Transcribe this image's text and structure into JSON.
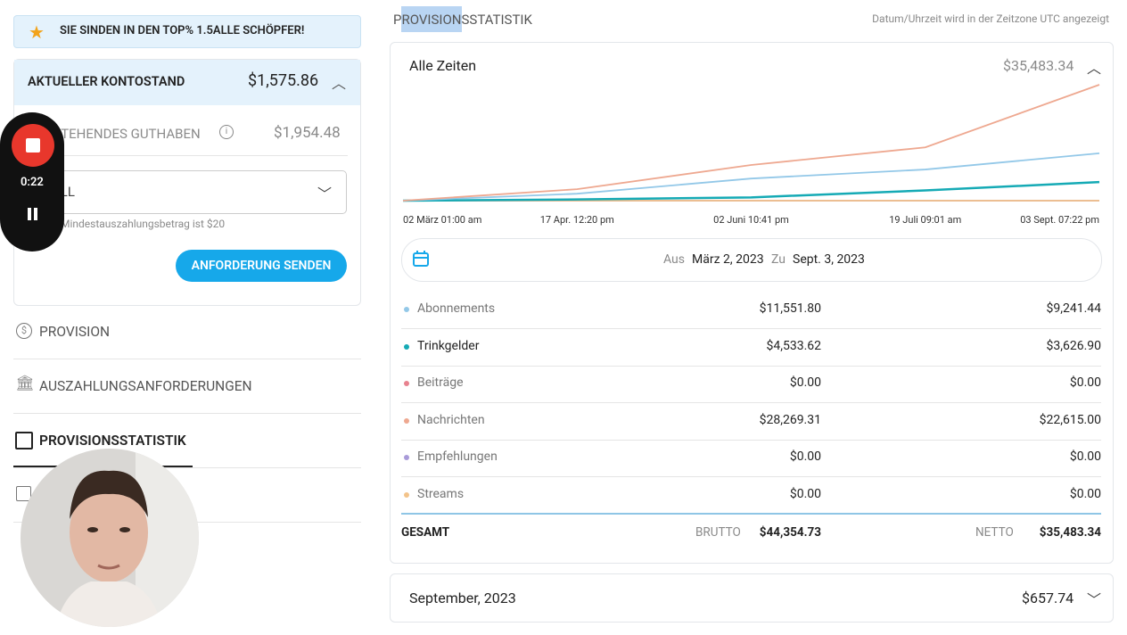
{
  "sidebar": {
    "banner": "SIE SINDEN IN DEN TOP% 1.5ALLE SCHÖPFER!",
    "balance_label": "AKTUELLER KONTOSTAND",
    "balance": "$1,575.86",
    "pending_label": "AUSSTEHENDES GUTHABEN",
    "pending": "$1,954.48",
    "select": "ALL",
    "min_note": "Mindestauszahlungsbetrag ist $20",
    "button": "ANFORDERUNG SENDEN",
    "nav": [
      "PROVISION",
      "AUSZAHLUNGSANFORDERUNGEN",
      "PROVISIONSSTATISTIK"
    ]
  },
  "recorder": {
    "time": "0:22"
  },
  "header": {
    "title": "PROVISIONSSTATISTIK",
    "timezone_note": "Datum/Uhrzeit wird in der Zeitzone UTC angezeigt"
  },
  "stats": {
    "period": "Alle Zeiten",
    "total": "$35,483.34",
    "chart": {
      "x": [
        "02 März 01:00 am",
        "17 Apr. 12:20 pm",
        "02 Juni 10:41 pm",
        "19 Juli 09:01 am",
        "03 Sept. 07:22 pm"
      ],
      "ylim": [
        0,
        28269
      ]
    },
    "range": {
      "from_label": "Aus",
      "from": "März 2, 2023",
      "to_label": "Zu",
      "to": "Sept. 3, 2023"
    },
    "rows": [
      {
        "label": "Abonnements",
        "color": "#93c8e8",
        "gross": "$11,551.80",
        "net": "$9,241.44",
        "trend": [
          0,
          1700,
          5400,
          7600,
          11551.8
        ]
      },
      {
        "label": "Trinkgelder",
        "color": "#15aab5",
        "gross": "$4,533.62",
        "net": "$3,626.90",
        "trend": [
          0,
          300,
          800,
          2500,
          4533.62
        ]
      },
      {
        "label": "Beiträge",
        "color": "#e8828f",
        "gross": "$0.00",
        "net": "$0.00",
        "trend": [
          0,
          0,
          0,
          0,
          0
        ]
      },
      {
        "label": "Nachrichten",
        "color": "#eea890",
        "gross": "$28,269.31",
        "net": "$22,615.00",
        "trend": [
          0,
          2800,
          8700,
          13000,
          28269.31
        ]
      },
      {
        "label": "Empfehlungen",
        "color": "#a99bd9",
        "gross": "$0.00",
        "net": "$0.00",
        "trend": [
          0,
          0,
          0,
          0,
          0
        ]
      },
      {
        "label": "Streams",
        "color": "#f3c38a",
        "gross": "$0.00",
        "net": "$0.00",
        "trend": [
          0,
          0,
          0,
          0,
          0
        ]
      }
    ],
    "total_row": {
      "label": "GESAMT",
      "gross_label": "BRUTTO",
      "gross": "$44,354.73",
      "net_label": "NETTO",
      "net": "$35,483.34"
    }
  },
  "month": {
    "label": "September, 2023",
    "amount": "$657.74"
  }
}
